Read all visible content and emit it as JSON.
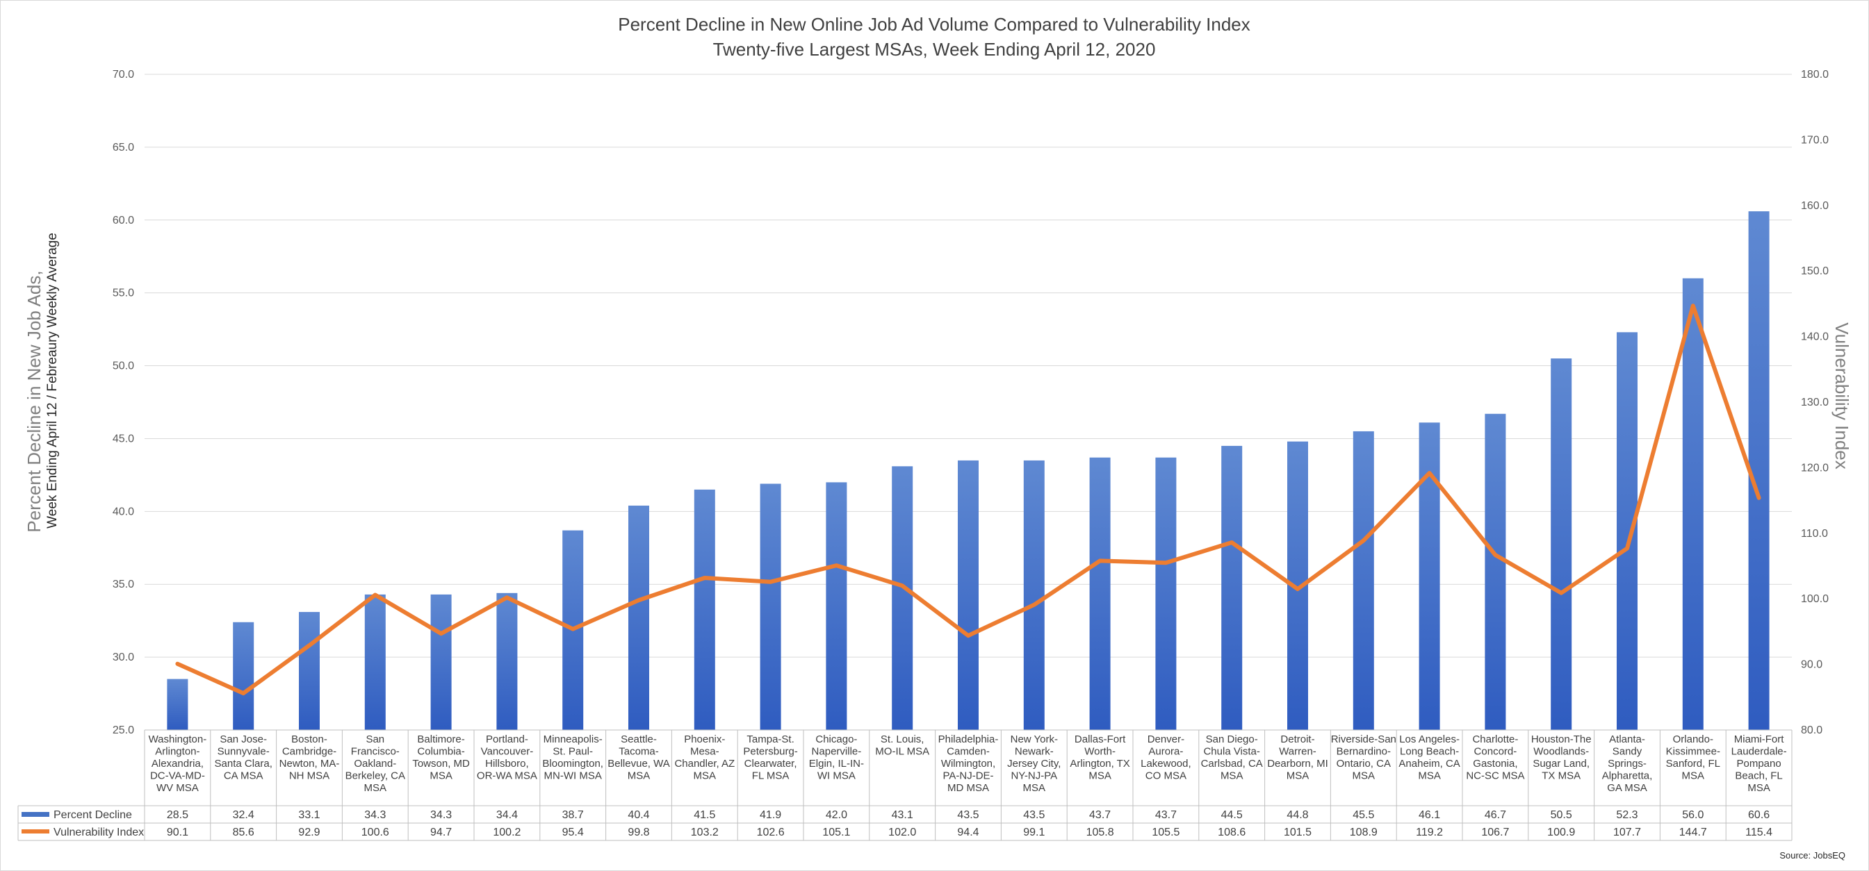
{
  "chart_data": {
    "type": "bar",
    "title": "Percent Decline in New Online Job Ad Volume Compared to Vulnerability Index",
    "subtitle": "Twenty-five Largest MSAs, Week Ending April 12, 2020",
    "ylabel": "Percent Decline in New Job Ads,",
    "ylabel_sub": "Week Ending April 12 / Febreaury Weekly Average",
    "y2label": "Vulnerability Index",
    "ylim": [
      25,
      70
    ],
    "y2lim": [
      80,
      180
    ],
    "yticks": [
      "25.0",
      "30.0",
      "35.0",
      "40.0",
      "45.0",
      "50.0",
      "55.0",
      "60.0",
      "65.0",
      "70.0"
    ],
    "y2ticks": [
      "80.0",
      "90.0",
      "100.0",
      "110.0",
      "120.0",
      "130.0",
      "140.0",
      "150.0",
      "160.0",
      "170.0",
      "180.0"
    ],
    "grid": true,
    "legend": "data-table",
    "source": "Source: JobsEQ",
    "categories": [
      [
        "Washington-",
        "Arlington-",
        "Alexandria,",
        "DC-VA-MD-",
        "WV MSA"
      ],
      [
        "San Jose-",
        "Sunnyvale-",
        "Santa Clara,",
        "CA MSA"
      ],
      [
        "Boston-",
        "Cambridge-",
        "Newton, MA-",
        "NH MSA"
      ],
      [
        "San",
        "Francisco-",
        "Oakland-",
        "Berkeley, CA",
        "MSA"
      ],
      [
        "Baltimore-",
        "Columbia-",
        "Towson, MD",
        "MSA"
      ],
      [
        "Portland-",
        "Vancouver-",
        "Hillsboro,",
        "OR-WA MSA"
      ],
      [
        "Minneapolis-",
        "St. Paul-",
        "Bloomington,",
        "MN-WI MSA"
      ],
      [
        "Seattle-",
        "Tacoma-",
        "Bellevue, WA",
        "MSA"
      ],
      [
        "Phoenix-",
        "Mesa-",
        "Chandler, AZ",
        "MSA"
      ],
      [
        "Tampa-St.",
        "Petersburg-",
        "Clearwater,",
        "FL MSA"
      ],
      [
        "Chicago-",
        "Naperville-",
        "Elgin, IL-IN-",
        "WI MSA"
      ],
      [
        "St. Louis,",
        "MO-IL MSA"
      ],
      [
        "Philadelphia-",
        "Camden-",
        "Wilmington,",
        "PA-NJ-DE-",
        "MD MSA"
      ],
      [
        "New York-",
        "Newark-",
        "Jersey City,",
        "NY-NJ-PA",
        "MSA"
      ],
      [
        "Dallas-Fort",
        "Worth-",
        "Arlington, TX",
        "MSA"
      ],
      [
        "Denver-",
        "Aurora-",
        "Lakewood,",
        "CO MSA"
      ],
      [
        "San Diego-",
        "Chula Vista-",
        "Carlsbad, CA",
        "MSA"
      ],
      [
        "Detroit-",
        "Warren-",
        "Dearborn, MI",
        "MSA"
      ],
      [
        "Riverside-San",
        "Bernardino-",
        "Ontario, CA",
        "MSA"
      ],
      [
        "Los Angeles-",
        "Long Beach-",
        "Anaheim, CA",
        "MSA"
      ],
      [
        "Charlotte-",
        "Concord-",
        "Gastonia,",
        "NC-SC MSA"
      ],
      [
        "Houston-The",
        "Woodlands-",
        "Sugar Land,",
        "TX MSA"
      ],
      [
        "Atlanta-",
        "Sandy",
        "Springs-",
        "Alpharetta,",
        "GA MSA"
      ],
      [
        "Orlando-",
        "Kissimmee-",
        "Sanford, FL",
        "MSA"
      ],
      [
        "Miami-Fort",
        "Lauderdale-",
        "Pompano",
        "Beach, FL",
        "MSA"
      ]
    ],
    "series": [
      {
        "name": "Percent Decline",
        "type": "bar",
        "axis": "left",
        "color": "#4472c4",
        "values": [
          28.5,
          32.4,
          33.1,
          34.3,
          34.3,
          34.4,
          38.7,
          40.4,
          41.5,
          41.9,
          42.0,
          43.1,
          43.5,
          43.5,
          43.7,
          43.7,
          44.5,
          44.8,
          45.5,
          46.1,
          46.7,
          50.5,
          52.3,
          56.0,
          60.6
        ],
        "labels": [
          "28.5",
          "32.4",
          "33.1",
          "34.3",
          "34.3",
          "34.4",
          "38.7",
          "40.4",
          "41.5",
          "41.9",
          "42.0",
          "43.1",
          "43.5",
          "43.5",
          "43.7",
          "43.7",
          "44.5",
          "44.8",
          "45.5",
          "46.1",
          "46.7",
          "50.5",
          "52.3",
          "56.0",
          "60.6"
        ]
      },
      {
        "name": "Vulnerability Index",
        "type": "line",
        "axis": "right",
        "color": "#ed7d31",
        "values": [
          90.1,
          85.6,
          92.9,
          100.6,
          94.7,
          100.2,
          95.4,
          99.8,
          103.2,
          102.6,
          105.1,
          102.0,
          94.4,
          99.1,
          105.8,
          105.5,
          108.6,
          101.5,
          108.9,
          119.2,
          106.7,
          100.9,
          107.7,
          144.7,
          115.4
        ],
        "labels": [
          "90.1",
          "85.6",
          "92.9",
          "100.6",
          "94.7",
          "100.2",
          "95.4",
          "99.8",
          "103.2",
          "102.6",
          "105.1",
          "102.0",
          "94.4",
          "99.1",
          "105.8",
          "105.5",
          "108.6",
          "101.5",
          "108.9",
          "119.2",
          "106.7",
          "100.9",
          "107.7",
          "144.7",
          "115.4"
        ]
      }
    ]
  }
}
